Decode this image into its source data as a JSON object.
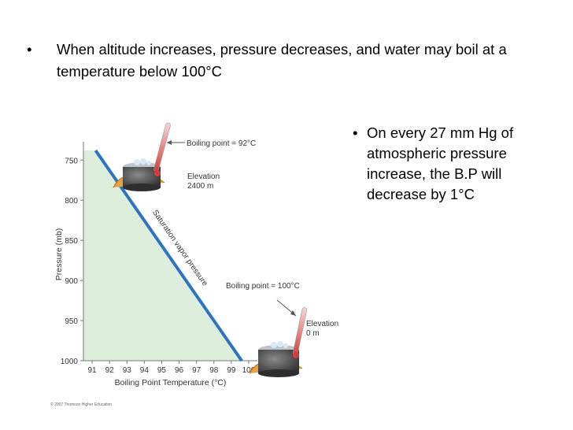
{
  "slide": {
    "bullet_top": "When altitude increases, pressure decreases, and water may boil at a temperature below 100°C",
    "bullet_right": "On every 27 mm Hg of atmospheric pressure increase, the B.P will decrease by 1°C",
    "bullet_symbol": "•"
  },
  "chart_data": {
    "type": "line",
    "xlabel": "Boiling Point Temperature (°C)",
    "ylabel": "Pressure (mb)",
    "x_ticks": [
      91,
      92,
      93,
      94,
      95,
      96,
      97,
      98,
      99,
      100
    ],
    "y_ticks": [
      750,
      800,
      850,
      900,
      950,
      1000
    ],
    "xlim": [
      90.5,
      100.5
    ],
    "ylim": [
      1000,
      735
    ],
    "y_inverted": true,
    "series": [
      {
        "name": "Saturation vapor pressure",
        "x": [
          91.2,
          99.6
        ],
        "y": [
          738,
          1000
        ]
      }
    ],
    "fill_under_curve": true,
    "colors": {
      "line": "#2f73c4",
      "fill": "#ddeedd",
      "axis": "#777777"
    },
    "annotations": {
      "top_boiling": "Boiling point = 92°C",
      "top_elevation": "Elevation",
      "top_elevation_value": "2400 m",
      "bottom_boiling": "Boiling point = 100°C",
      "bottom_elevation": "Elevation",
      "bottom_elevation_value": "0 m",
      "copyright": "© 2007 Thomson Higher Education"
    }
  }
}
